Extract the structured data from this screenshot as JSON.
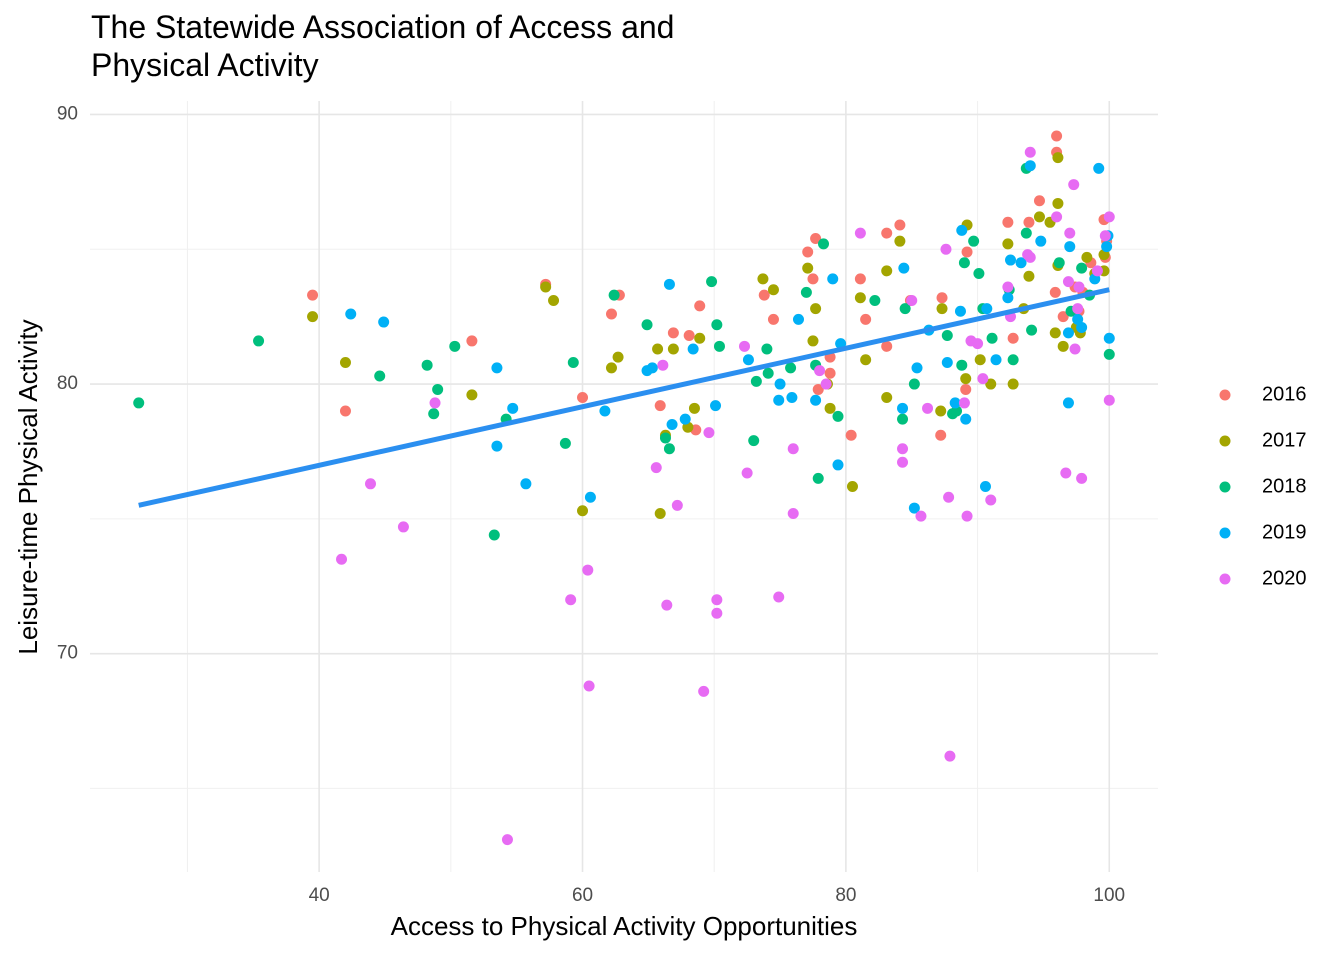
{
  "chart_data": {
    "type": "scatter",
    "title": "The Statewide Association of Access and Physical Activity",
    "x_label": "Access to Physical Activity Opportunities",
    "y_label": "Leisure-time Physical Activity",
    "xlim": [
      22.6,
      103.7
    ],
    "ylim": [
      61.9,
      90.5
    ],
    "xticks": [
      40,
      60,
      80,
      100
    ],
    "yticks": [
      70,
      80,
      90
    ],
    "minor_xticks": [
      30,
      50,
      70,
      90
    ],
    "minor_yticks": [
      65,
      75,
      85
    ],
    "grid": true,
    "legend": "right",
    "trend": {
      "x": [
        26.3,
        100
      ],
      "y": [
        75.5,
        83.5
      ],
      "color": "#2b8ff0"
    },
    "series": [
      {
        "name": "2016",
        "color": "#F8766D",
        "x": [
          39.5,
          42.0,
          51.6,
          57.2,
          60.0,
          62.2,
          62.8,
          65.9,
          66.9,
          68.1,
          68.6,
          68.9,
          73.8,
          74.5,
          77.1,
          77.7,
          77.5,
          78.8,
          78.8,
          77.9,
          80.4,
          81.1,
          81.5,
          83.1,
          84.1,
          83.1,
          84.9,
          87.3,
          87.2,
          89.2,
          89.1,
          92.3,
          92.7,
          93.9,
          94.7,
          96.0,
          96.0,
          95.9,
          96.5,
          97.4,
          98.0,
          98.6,
          99.6,
          99.8,
          99.7,
          97.7
        ],
        "y": [
          83.3,
          79.0,
          81.6,
          83.7,
          79.5,
          82.6,
          83.3,
          79.2,
          81.9,
          81.8,
          78.3,
          82.9,
          83.3,
          82.4,
          84.9,
          85.4,
          83.9,
          81.0,
          80.4,
          79.8,
          78.1,
          83.9,
          82.4,
          85.6,
          85.9,
          81.4,
          83.1,
          83.2,
          78.1,
          84.9,
          79.8,
          86.0,
          81.7,
          86.0,
          86.8,
          89.2,
          88.6,
          83.4,
          82.5,
          83.6,
          83.4,
          84.5,
          86.1,
          85.3,
          84.7,
          82.7
        ]
      },
      {
        "name": "2017",
        "color": "#A3A500",
        "x": [
          39.5,
          42.0,
          51.6,
          57.2,
          57.8,
          60.0,
          62.2,
          62.7,
          65.7,
          65.9,
          66.3,
          66.9,
          68.0,
          68.5,
          68.9,
          73.7,
          74.5,
          77.1,
          77.5,
          77.7,
          78.8,
          78.6,
          80.5,
          81.1,
          81.5,
          83.1,
          83.1,
          84.1,
          87.3,
          87.2,
          89.2,
          89.1,
          90.2,
          91.0,
          92.3,
          92.7,
          93.5,
          93.9,
          94.7,
          95.5,
          95.9,
          96.1,
          96.1,
          96.1,
          96.5,
          97.8,
          98.3,
          98.9,
          99.6,
          99.6,
          97.5
        ],
        "y": [
          82.5,
          80.8,
          79.6,
          83.6,
          83.1,
          75.3,
          80.6,
          81.0,
          81.3,
          75.2,
          78.1,
          81.3,
          78.4,
          79.1,
          81.7,
          83.9,
          83.5,
          84.3,
          81.6,
          82.8,
          79.1,
          80.0,
          76.2,
          83.2,
          80.9,
          84.2,
          79.5,
          85.3,
          82.8,
          79.0,
          85.9,
          80.2,
          80.9,
          80.0,
          85.2,
          80.0,
          82.8,
          84.0,
          86.2,
          86.0,
          81.9,
          86.7,
          88.4,
          84.4,
          81.4,
          81.9,
          84.7,
          84.1,
          84.2,
          84.8,
          82.1
        ]
      },
      {
        "name": "2018",
        "color": "#00BF7D",
        "x": [
          26.3,
          35.4,
          44.6,
          48.2,
          48.7,
          49.0,
          50.3,
          53.3,
          54.2,
          58.7,
          59.3,
          62.4,
          64.9,
          66.6,
          66.3,
          69.8,
          70.2,
          70.4,
          73.0,
          73.2,
          74.0,
          74.1,
          75.8,
          77.0,
          77.7,
          77.9,
          78.3,
          79.4,
          82.2,
          84.3,
          84.5,
          85.2,
          87.7,
          88.1,
          88.4,
          88.8,
          89.0,
          89.7,
          90.1,
          90.4,
          91.1,
          92.7,
          92.4,
          93.7,
          93.7,
          94.1,
          96.2,
          97.1,
          97.9,
          98.5,
          100.0
        ],
        "y": [
          79.3,
          81.6,
          80.3,
          80.7,
          78.9,
          79.8,
          81.4,
          74.4,
          78.7,
          77.8,
          80.8,
          83.3,
          82.2,
          77.6,
          78.0,
          83.8,
          82.2,
          81.4,
          77.9,
          80.1,
          81.3,
          80.4,
          80.6,
          83.4,
          80.7,
          76.5,
          85.2,
          78.8,
          83.1,
          78.7,
          82.8,
          80.0,
          81.8,
          78.9,
          79.0,
          80.7,
          84.5,
          85.3,
          84.1,
          82.8,
          81.7,
          80.9,
          83.5,
          85.6,
          88.0,
          82.0,
          84.5,
          82.7,
          84.3,
          83.3,
          81.1
        ]
      },
      {
        "name": "2019",
        "color": "#00B0F6",
        "x": [
          42.4,
          44.9,
          53.5,
          53.5,
          54.7,
          55.7,
          60.6,
          61.7,
          64.9,
          65.3,
          66.6,
          66.8,
          67.8,
          68.4,
          70.1,
          72.6,
          75.0,
          74.9,
          75.9,
          76.4,
          77.7,
          79.0,
          79.4,
          79.6,
          84.4,
          84.3,
          85.2,
          85.4,
          86.3,
          87.7,
          88.3,
          88.7,
          88.8,
          89.1,
          90.6,
          90.7,
          91.4,
          92.3,
          92.5,
          93.3,
          94.0,
          94.8,
          96.9,
          96.9,
          97.0,
          97.6,
          97.9,
          99.2,
          99.8,
          99.9,
          100.0,
          98.9
        ],
        "y": [
          82.6,
          82.3,
          80.6,
          77.7,
          79.1,
          76.3,
          75.8,
          79.0,
          80.5,
          80.6,
          83.7,
          78.5,
          78.7,
          81.3,
          79.2,
          80.9,
          80.0,
          79.4,
          79.5,
          82.4,
          79.4,
          83.9,
          77.0,
          81.5,
          84.3,
          79.1,
          75.4,
          80.6,
          82.0,
          80.8,
          79.3,
          82.7,
          85.7,
          78.7,
          76.2,
          82.8,
          80.9,
          83.2,
          84.6,
          84.5,
          88.1,
          85.3,
          79.3,
          81.9,
          85.1,
          82.4,
          82.1,
          88.0,
          85.1,
          85.5,
          81.7,
          83.9
        ]
      },
      {
        "name": "2020",
        "color": "#E76BF3",
        "x": [
          43.9,
          41.7,
          46.4,
          48.8,
          54.3,
          59.1,
          60.4,
          60.5,
          65.6,
          66.1,
          66.4,
          67.2,
          69.2,
          69.6,
          70.2,
          70.2,
          72.3,
          72.5,
          74.9,
          76.0,
          76.0,
          78.0,
          78.5,
          81.1,
          84.3,
          84.3,
          85.0,
          85.7,
          86.2,
          87.6,
          87.8,
          87.9,
          89.0,
          89.2,
          89.5,
          90.0,
          90.4,
          91.0,
          92.3,
          92.5,
          94.0,
          93.8,
          94.0,
          96.0,
          96.7,
          97.0,
          96.9,
          97.3,
          97.4,
          97.6,
          97.7,
          97.9,
          99.1,
          100.0,
          100.0,
          99.7
        ],
        "y": [
          76.3,
          73.5,
          74.7,
          79.3,
          63.1,
          72.0,
          73.1,
          68.8,
          76.9,
          80.7,
          71.8,
          75.5,
          68.6,
          78.2,
          72.0,
          71.5,
          81.4,
          76.7,
          72.1,
          77.6,
          75.2,
          80.5,
          80.0,
          85.6,
          77.6,
          77.1,
          83.1,
          75.1,
          79.1,
          85.0,
          75.8,
          66.2,
          79.3,
          75.1,
          81.6,
          81.5,
          80.2,
          75.7,
          83.6,
          82.5,
          88.6,
          84.8,
          84.7,
          86.2,
          76.7,
          85.6,
          83.8,
          87.4,
          81.3,
          82.8,
          83.6,
          76.5,
          84.2,
          86.2,
          79.4,
          85.5
        ]
      }
    ]
  }
}
